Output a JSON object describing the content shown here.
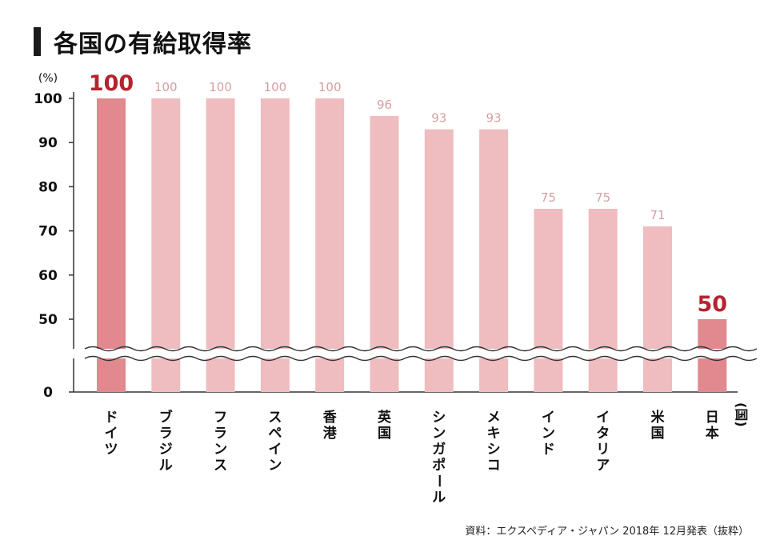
{
  "title": "各国の有給取得率",
  "source": "資料：エクスペディア・ジャパン 2018年 12月発表（抜粋）",
  "colors": {
    "bar": "#efbcbf",
    "highlight_bar": "#e1898f",
    "value_label": "#d79ea2",
    "highlight_label": "#b5232e",
    "axis": "#333333"
  },
  "chart_data": {
    "type": "bar",
    "y_unit_label": "(%)",
    "x_unit_label": "(国)",
    "yticks": [
      0,
      50,
      60,
      70,
      80,
      90,
      100
    ],
    "ylim": [
      0,
      100
    ],
    "axis_break": true,
    "categories": [
      "ドイツ",
      "ブラジル",
      "フランス",
      "スペイン",
      "香港",
      "英国",
      "シンガポール",
      "メキシコ",
      "インド",
      "イタリア",
      "米国",
      "日本"
    ],
    "values": [
      100,
      100,
      100,
      100,
      100,
      96,
      93,
      93,
      75,
      75,
      71,
      50
    ],
    "highlighted": [
      "ドイツ",
      "日本"
    ]
  }
}
